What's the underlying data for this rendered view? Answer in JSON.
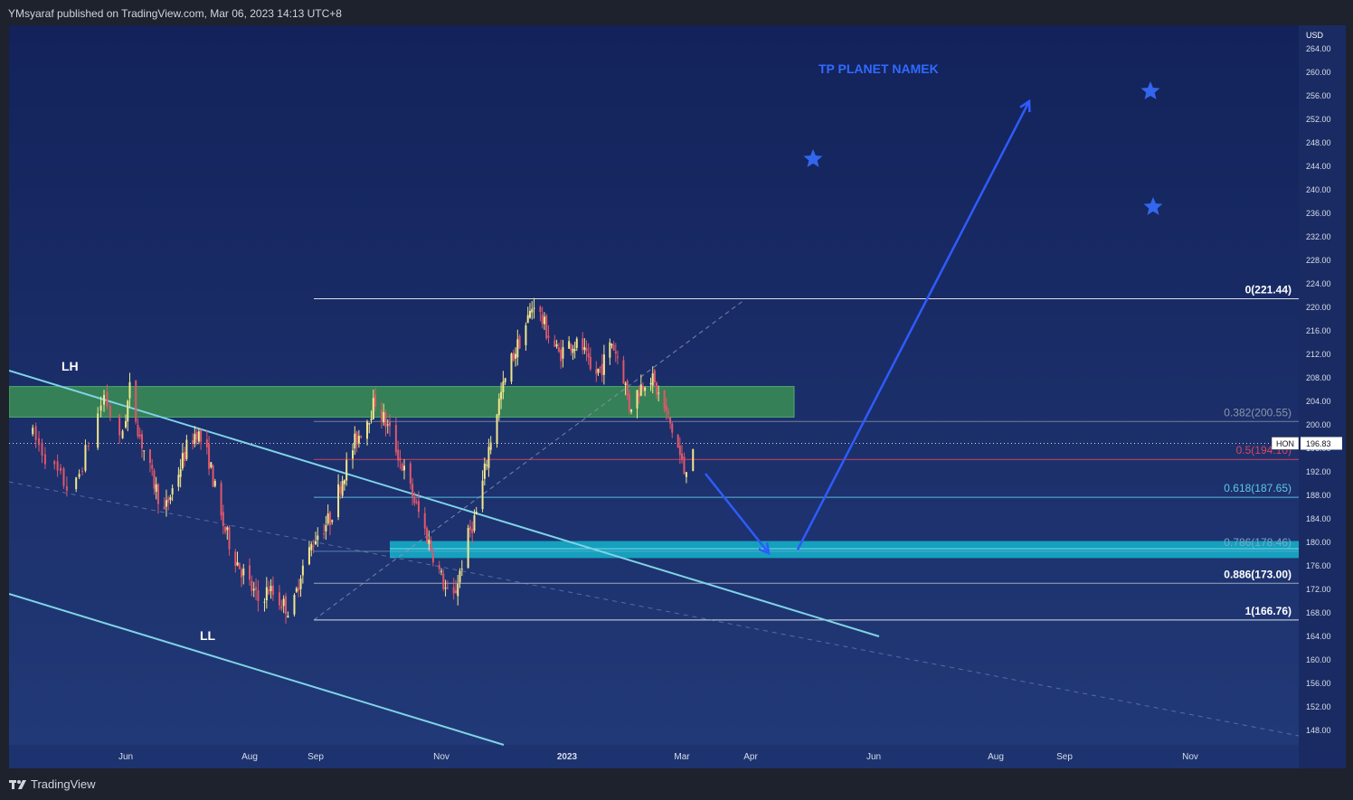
{
  "header": {
    "published": "YMsyaraf published on TradingView.com, Mar 06, 2023 14:13 UTC+8"
  },
  "footer": {
    "brand": "TradingView"
  },
  "colors": {
    "bg_top": "#13225a",
    "bg_bottom": "#223a78",
    "demand_zone": "#15a6c2",
    "supply_zone": "#3a8a55",
    "channel": "#7fd3e6",
    "arrow": "#2f5bff",
    "fib_red": "#e0455a",
    "fib_cyan": "#5fc8e6"
  },
  "chart_data": {
    "type": "candlestick",
    "symbol": "HON",
    "currency": "USD",
    "last_price": "196.83",
    "x_ticks": [
      "Jun",
      "Aug",
      "Sep",
      "Nov",
      "2023",
      "Mar",
      "Apr",
      "Jun",
      "Aug",
      "Sep",
      "Nov"
    ],
    "y_ticks": [
      "264.00",
      "260.00",
      "256.00",
      "252.00",
      "248.00",
      "244.00",
      "240.00",
      "236.00",
      "232.00",
      "228.00",
      "224.00",
      "220.00",
      "216.00",
      "212.00",
      "208.00",
      "204.00",
      "200.00",
      "196.00",
      "192.00",
      "188.00",
      "184.00",
      "180.00",
      "176.00",
      "172.00",
      "168.00",
      "164.00",
      "160.00",
      "156.00",
      "152.00",
      "148.00"
    ],
    "ylim": [
      145.5,
      268
    ],
    "fib_levels": [
      {
        "ratio": "0",
        "price": 221.44,
        "label": "0(221.44)"
      },
      {
        "ratio": "0.382",
        "price": 200.55,
        "label": "0.382(200.55)"
      },
      {
        "ratio": "0.5",
        "price": 194.1,
        "label": "0.5(194.10)"
      },
      {
        "ratio": "0.618",
        "price": 187.65,
        "label": "0.618(187.65)"
      },
      {
        "ratio": "0.786",
        "price": 178.46,
        "label": "0.786(178.46)"
      },
      {
        "ratio": "0.886",
        "price": 173.0,
        "label": "0.886(173.00)"
      },
      {
        "ratio": "1",
        "price": 166.76,
        "label": "1(166.76)"
      }
    ],
    "annotations": {
      "lh": "LH",
      "ll": "LL",
      "target": "TP PLANET NAMEK"
    },
    "supply_zone": [
      201.3,
      206.5
    ],
    "demand_zone": [
      177.3,
      180.2
    ],
    "price_series": [
      [
        "2022-05-01",
        199
      ],
      [
        "2022-05-08",
        193
      ],
      [
        "2022-05-15",
        188
      ],
      [
        "2022-05-20",
        197
      ],
      [
        "2022-05-25",
        205
      ],
      [
        "2022-05-30",
        197
      ],
      [
        "2022-06-03",
        206
      ],
      [
        "2022-06-08",
        198
      ],
      [
        "2022-06-14",
        191
      ],
      [
        "2022-06-20",
        185
      ],
      [
        "2022-06-25",
        190
      ],
      [
        "2022-07-01",
        196
      ],
      [
        "2022-07-06",
        199
      ],
      [
        "2022-07-12",
        194
      ],
      [
        "2022-07-18",
        184
      ],
      [
        "2022-07-24",
        178
      ],
      [
        "2022-07-30",
        174
      ],
      [
        "2022-08-05",
        170
      ],
      [
        "2022-08-10",
        172
      ],
      [
        "2022-08-15",
        170
      ],
      [
        "2022-08-21",
        168
      ],
      [
        "2022-08-25",
        175
      ],
      [
        "2022-09-01",
        181
      ],
      [
        "2022-09-08",
        184
      ],
      [
        "2022-09-14",
        191
      ],
      [
        "2022-09-20",
        197
      ],
      [
        "2022-09-26",
        201
      ],
      [
        "2022-09-30",
        204
      ],
      [
        "2022-10-04",
        201
      ],
      [
        "2022-10-08",
        198
      ],
      [
        "2022-10-14",
        192
      ],
      [
        "2022-10-20",
        186
      ],
      [
        "2022-10-26",
        180
      ],
      [
        "2022-11-01",
        174
      ],
      [
        "2022-11-06",
        169
      ],
      [
        "2022-11-10",
        175
      ],
      [
        "2022-11-14",
        181
      ],
      [
        "2022-11-19",
        186
      ],
      [
        "2022-11-24",
        196
      ],
      [
        "2022-11-29",
        204
      ],
      [
        "2022-12-05",
        211
      ],
      [
        "2022-12-11",
        216
      ],
      [
        "2022-12-16",
        221
      ],
      [
        "2022-12-22",
        216
      ],
      [
        "2022-12-28",
        212
      ],
      [
        "2023-01-03",
        214
      ],
      [
        "2023-01-09",
        213
      ],
      [
        "2023-01-14",
        208
      ],
      [
        "2023-01-19",
        210
      ],
      [
        "2023-01-24",
        214
      ],
      [
        "2023-01-29",
        210
      ],
      [
        "2023-02-02",
        203
      ],
      [
        "2023-02-07",
        206
      ],
      [
        "2023-02-12",
        209
      ],
      [
        "2023-02-17",
        205
      ],
      [
        "2023-02-22",
        201
      ],
      [
        "2023-02-27",
        196
      ],
      [
        "2023-03-02",
        192
      ],
      [
        "2023-03-06",
        196.83
      ]
    ]
  }
}
